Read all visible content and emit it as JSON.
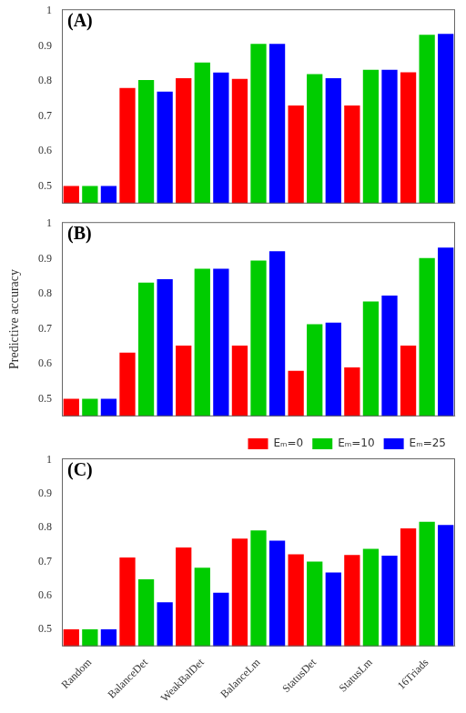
{
  "chart_data": [
    {
      "type": "bar",
      "annotation": "(A)",
      "categories": [
        "Random",
        "BalanceDet",
        "WeakBalDet",
        "BalanceLm",
        "StatusDet",
        "StatusLm",
        "16Triads"
      ],
      "series": [
        {
          "name": "Eₘ=0",
          "color": "#ff0000",
          "values": [
            0.5,
            0.78,
            0.808,
            0.806,
            0.73,
            0.73,
            0.825
          ]
        },
        {
          "name": "Eₘ=10",
          "color": "#00cc00",
          "values": [
            0.5,
            0.803,
            0.853,
            0.906,
            0.82,
            0.832,
            0.932
          ]
        },
        {
          "name": "Eₘ=25",
          "color": "#0000ff",
          "values": [
            0.5,
            0.77,
            0.824,
            0.906,
            0.808,
            0.832,
            0.935
          ]
        }
      ],
      "ylim": [
        0.45,
        1.005
      ],
      "yticks": [
        0.5,
        0.6,
        0.7,
        0.8,
        0.9,
        1
      ],
      "grid": false,
      "legend": false,
      "tick_labels": "y"
    },
    {
      "type": "bar",
      "annotation": "(B)",
      "ylabel": "Predictive accuracy",
      "categories": [
        "Random",
        "BalanceDet",
        "WeakBalDet",
        "BalanceLm",
        "StatusDet",
        "StatusLm",
        "16Triads"
      ],
      "series": [
        {
          "name": "Eₘ=0",
          "color": "#ff0000",
          "values": [
            0.5,
            0.632,
            0.652,
            0.652,
            0.58,
            0.59,
            0.652
          ]
        },
        {
          "name": "Eₘ=10",
          "color": "#00cc00",
          "values": [
            0.5,
            0.832,
            0.872,
            0.895,
            0.713,
            0.778,
            0.902
          ]
        },
        {
          "name": "Eₘ=25",
          "color": "#0000ff",
          "values": [
            0.5,
            0.842,
            0.872,
            0.922,
            0.718,
            0.795,
            0.932
          ]
        }
      ],
      "ylim": [
        0.45,
        1.005
      ],
      "yticks": [
        0.5,
        0.6,
        0.7,
        0.8,
        0.9,
        1
      ],
      "grid": false,
      "legend": false,
      "tick_labels": "y"
    },
    {
      "type": "bar",
      "annotation": "(C)",
      "categories": [
        "Random",
        "BalanceDet",
        "WeakBalDet",
        "BalanceLm",
        "StatusDet",
        "StatusLm",
        "16Triads"
      ],
      "series": [
        {
          "name": "Eₘ=0",
          "color": "#ff0000",
          "values": [
            0.5,
            0.712,
            0.742,
            0.768,
            0.722,
            0.72,
            0.798
          ]
        },
        {
          "name": "Eₘ=10",
          "color": "#00cc00",
          "values": [
            0.5,
            0.648,
            0.682,
            0.792,
            0.7,
            0.738,
            0.818
          ]
        },
        {
          "name": "Eₘ=25",
          "color": "#0000ff",
          "values": [
            0.5,
            0.58,
            0.608,
            0.762,
            0.668,
            0.718,
            0.808
          ]
        }
      ],
      "ylim": [
        0.45,
        1.005
      ],
      "yticks": [
        0.5,
        0.6,
        0.7,
        0.8,
        0.9,
        1
      ],
      "grid": false,
      "legend": "upper right"
    }
  ]
}
